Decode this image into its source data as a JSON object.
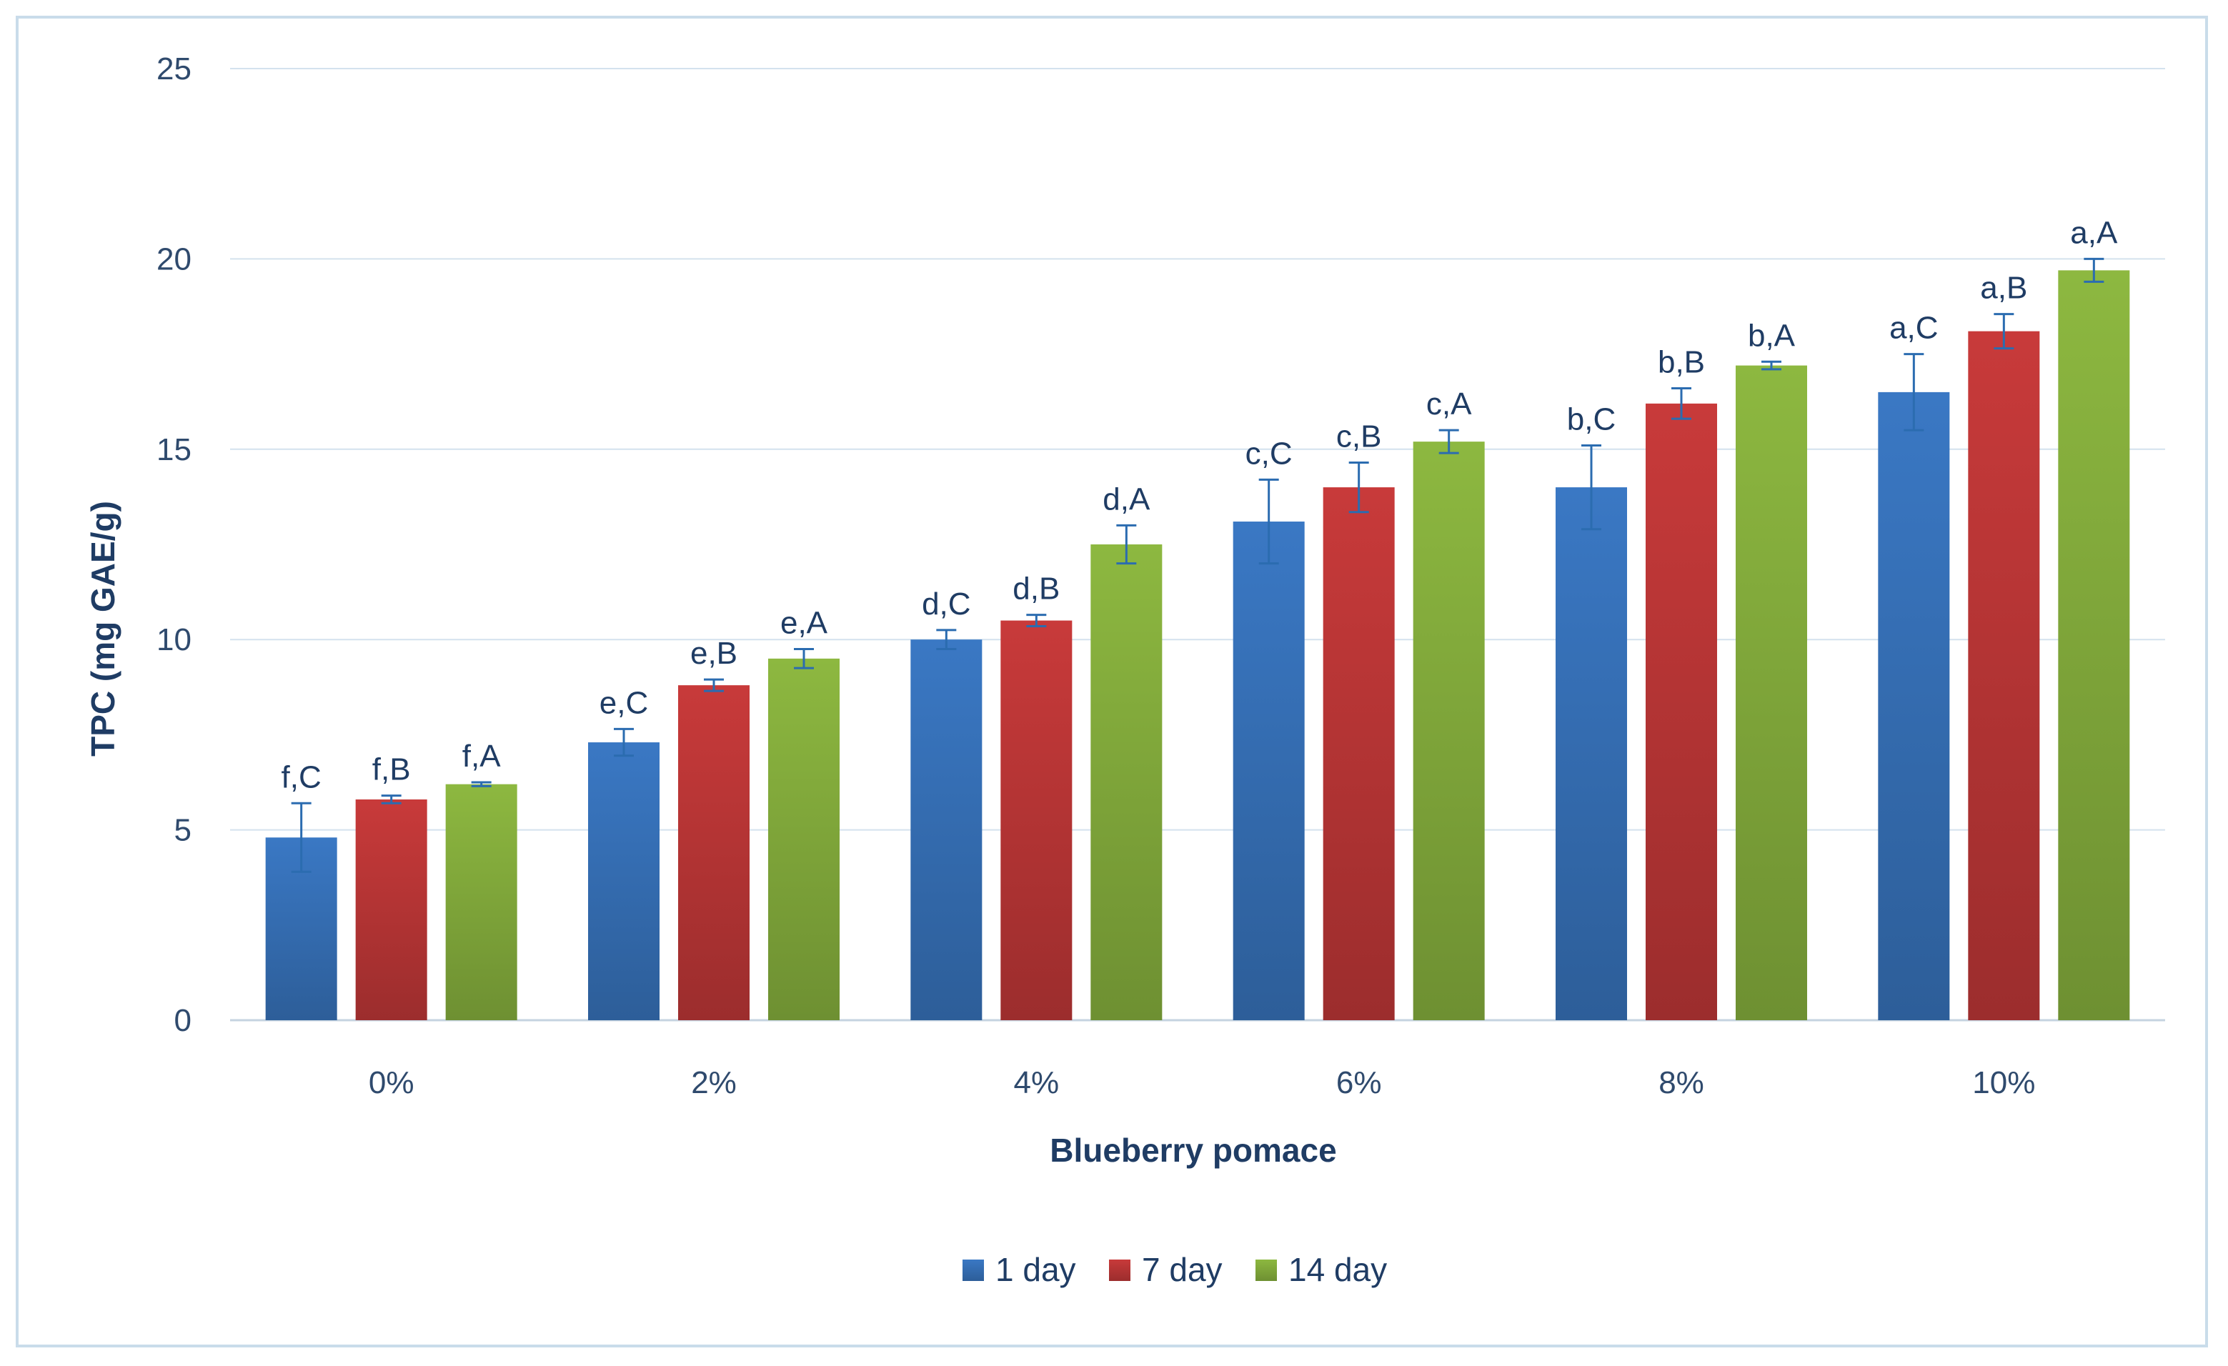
{
  "chart_data": {
    "type": "bar",
    "title": "",
    "xlabel": "Blueberry pomace",
    "ylabel": "TPC (mg GAE/g)",
    "ylim": [
      0,
      25
    ],
    "yticks": [
      0,
      5,
      10,
      15,
      20,
      25
    ],
    "grid": "horizontal",
    "legend_position": "bottom",
    "categories": [
      "0%",
      "2%",
      "4%",
      "6%",
      "8%",
      "10%"
    ],
    "series": [
      {
        "name": "1 day",
        "color": "#3a78c4",
        "values": [
          4.8,
          7.3,
          10.0,
          13.1,
          14.0,
          16.5
        ],
        "errors": [
          0.9,
          0.35,
          0.25,
          1.1,
          1.1,
          1.0
        ],
        "labels": [
          "f,C",
          "e,C",
          "d,C",
          "c,C",
          "b,C",
          "a,C"
        ]
      },
      {
        "name": "7 day",
        "color": "#c83a3a",
        "values": [
          5.8,
          8.8,
          10.5,
          14.0,
          16.2,
          18.1
        ],
        "errors": [
          0.1,
          0.15,
          0.15,
          0.65,
          0.4,
          0.45
        ],
        "labels": [
          "f,B",
          "e,B",
          "d,B",
          "c,B",
          "b,B",
          "a,B"
        ]
      },
      {
        "name": "14 day",
        "color": "#8db840",
        "values": [
          6.2,
          9.5,
          12.5,
          15.2,
          17.2,
          19.7
        ],
        "errors": [
          0.05,
          0.25,
          0.5,
          0.3,
          0.1,
          0.3
        ],
        "labels": [
          "f,A",
          "e,A",
          "d,A",
          "c,A",
          "b,A",
          "a,A"
        ]
      }
    ]
  }
}
